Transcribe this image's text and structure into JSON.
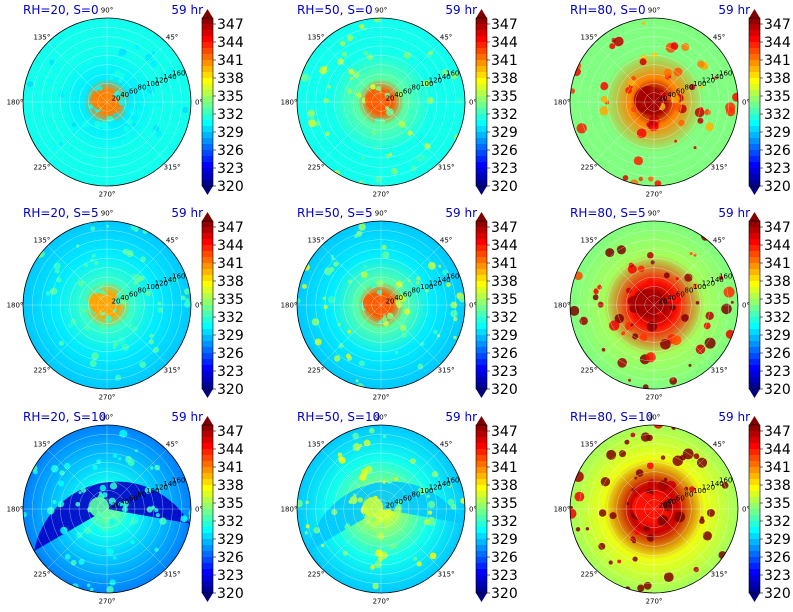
{
  "chart_data": {
    "type": "heatmap",
    "projection": "polar",
    "colormap": "jet",
    "colorbar_ticks": [
      "347",
      "344",
      "341",
      "338",
      "335",
      "332",
      "329",
      "326",
      "323",
      "320"
    ],
    "vmin": 320,
    "vmax": 348,
    "angle_ticks": [
      "0°",
      "45°",
      "90°",
      "135°",
      "180°",
      "225°",
      "270°",
      "315°"
    ],
    "radial_ticks": [
      "20",
      "40",
      "60",
      "80",
      "100",
      "120",
      "140",
      "160"
    ],
    "rmax": 180,
    "panels": [
      {
        "title": "RH=20, S=0",
        "time": "59 hr",
        "rh": 20,
        "shear": 0,
        "core_value": 341,
        "background_value": 331,
        "ring_value": 330
      },
      {
        "title": "RH=50, S=0",
        "time": "59 hr",
        "rh": 50,
        "shear": 0,
        "core_value": 342,
        "background_value": 331,
        "ring_value": 333
      },
      {
        "title": "RH=80, S=0",
        "time": "59 hr",
        "rh": 80,
        "shear": 0,
        "core_value": 347,
        "background_value": 334,
        "ring_value": 341
      },
      {
        "title": "RH=20, S=5",
        "time": "59 hr",
        "rh": 20,
        "shear": 5,
        "core_value": 340,
        "background_value": 330,
        "ring_value": 332
      },
      {
        "title": "RH=50, S=5",
        "time": "59 hr",
        "rh": 50,
        "shear": 5,
        "core_value": 342,
        "background_value": 330,
        "ring_value": 333
      },
      {
        "title": "RH=80, S=5",
        "time": "59 hr",
        "rh": 80,
        "shear": 5,
        "core_value": 347,
        "background_value": 335,
        "ring_value": 344
      },
      {
        "title": "RH=20, S=10",
        "time": "59 hr",
        "rh": 20,
        "shear": 10,
        "core_value": 333,
        "background_value": 329,
        "ring_value": 331
      },
      {
        "title": "RH=50, S=10",
        "time": "59 hr",
        "rh": 50,
        "shear": 10,
        "core_value": 336,
        "background_value": 331,
        "ring_value": 334
      },
      {
        "title": "RH=80, S=10",
        "time": "59 hr",
        "rh": 80,
        "shear": 10,
        "core_value": 344,
        "background_value": 337,
        "ring_value": 346
      }
    ]
  }
}
